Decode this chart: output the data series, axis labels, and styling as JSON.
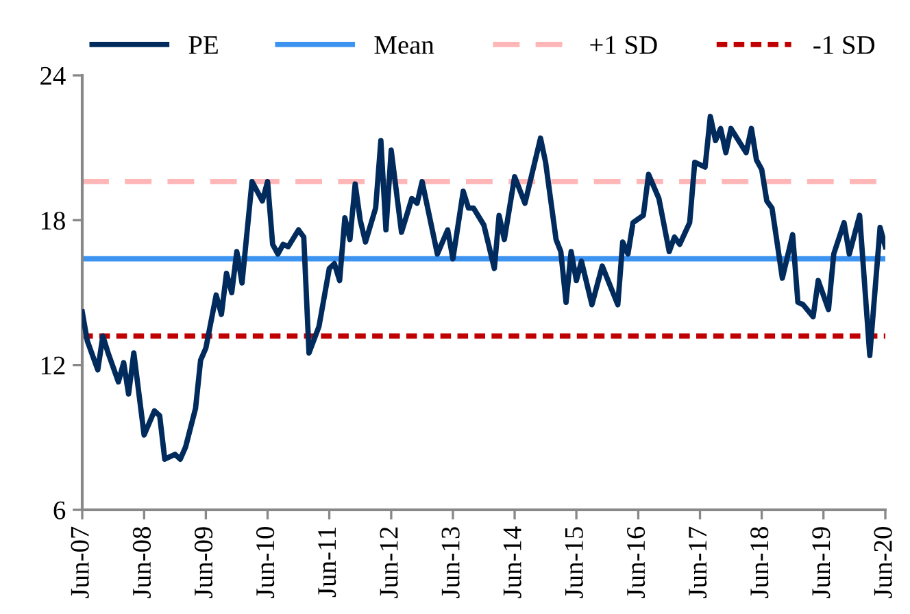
{
  "chart_data": {
    "type": "line",
    "series": [
      {
        "name": "PE",
        "color": "#002b5c",
        "x": [
          "2007-06",
          "2007-07",
          "2007-09",
          "2007-10",
          "2007-11",
          "2008-01",
          "2008-02",
          "2008-03",
          "2008-04",
          "2008-06",
          "2008-08",
          "2008-09",
          "2008-10",
          "2008-12",
          "2009-01",
          "2009-02",
          "2009-04",
          "2009-05",
          "2009-06",
          "2009-08",
          "2009-09",
          "2009-10",
          "2009-11",
          "2009-12",
          "2010-01",
          "2010-03",
          "2010-05",
          "2010-06",
          "2010-07",
          "2010-08",
          "2010-09",
          "2010-10",
          "2010-12",
          "2011-01",
          "2011-02",
          "2011-04",
          "2011-06",
          "2011-07",
          "2011-08",
          "2011-09",
          "2011-10",
          "2011-11",
          "2011-12",
          "2012-01",
          "2012-03",
          "2012-04",
          "2012-05",
          "2012-06",
          "2012-08",
          "2012-10",
          "2012-11",
          "2012-12",
          "2013-03",
          "2013-05",
          "2013-06",
          "2013-08",
          "2013-09",
          "2013-10",
          "2013-12",
          "2014-02",
          "2014-03",
          "2014-04",
          "2014-06",
          "2014-08",
          "2014-11",
          "2014-12",
          "2015-02",
          "2015-03",
          "2015-04",
          "2015-05",
          "2015-06",
          "2015-07",
          "2015-09",
          "2015-11",
          "2016-02",
          "2016-03",
          "2016-04",
          "2016-05",
          "2016-07",
          "2016-08",
          "2016-10",
          "2016-12",
          "2017-01",
          "2017-02",
          "2017-04",
          "2017-05",
          "2017-07",
          "2017-08",
          "2017-09",
          "2017-10",
          "2017-11",
          "2017-12",
          "2018-03",
          "2018-04",
          "2018-05",
          "2018-06",
          "2018-07",
          "2018-08",
          "2018-10",
          "2018-12",
          "2019-01",
          "2019-02",
          "2019-04",
          "2019-05",
          "2019-07",
          "2019-08",
          "2019-10",
          "2019-11",
          "2020-01",
          "2020-03",
          "2020-05",
          "2020-06"
        ],
        "values": [
          14.2,
          13.0,
          11.8,
          13.2,
          12.5,
          11.3,
          12.1,
          10.8,
          12.5,
          9.1,
          10.1,
          9.9,
          8.1,
          8.3,
          8.1,
          8.6,
          10.2,
          12.2,
          12.7,
          14.9,
          14.1,
          15.8,
          15.0,
          16.7,
          15.4,
          19.6,
          18.8,
          19.6,
          17.0,
          16.6,
          17.0,
          16.9,
          17.6,
          17.3,
          12.5,
          13.6,
          16.0,
          16.2,
          15.5,
          18.1,
          17.2,
          19.5,
          18.0,
          17.1,
          18.5,
          21.3,
          17.6,
          20.9,
          17.5,
          18.9,
          18.7,
          19.6,
          16.6,
          17.6,
          16.4,
          19.2,
          18.5,
          18.5,
          17.8,
          16.0,
          18.2,
          17.2,
          19.8,
          18.7,
          21.4,
          20.4,
          17.2,
          16.7,
          14.6,
          16.7,
          15.5,
          16.3,
          14.5,
          16.1,
          14.5,
          17.1,
          16.6,
          17.9,
          18.2,
          19.9,
          18.9,
          16.7,
          17.3,
          17.0,
          17.9,
          20.4,
          20.2,
          22.3,
          21.3,
          21.8,
          20.8,
          21.8,
          20.8,
          21.8,
          20.5,
          20.1,
          18.8,
          18.5,
          15.6,
          17.4,
          14.6,
          14.5,
          14.0,
          15.5,
          14.3,
          16.6,
          17.9,
          16.6,
          18.2,
          12.4,
          17.7,
          16.9
        ]
      }
    ],
    "ref_lines": [
      {
        "axis": "y",
        "value": 16.4,
        "label": "Mean",
        "color": "#3c93f0",
        "line_style": "solid"
      },
      {
        "axis": "y",
        "value": 19.6,
        "label": "+1 SD",
        "color": "#ffb6b6",
        "line_style": "dashed"
      },
      {
        "axis": "y",
        "value": 13.2,
        "label": "-1 SD",
        "color": "#c00000",
        "line_style": "dotted"
      }
    ],
    "xlim": [
      "2007-06",
      "2020-06"
    ],
    "xticks": [
      {
        "value": "2007-06",
        "label": "Jun-07"
      },
      {
        "value": "2008-06",
        "label": "Jun-08"
      },
      {
        "value": "2009-06",
        "label": "Jun-09"
      },
      {
        "value": "2010-06",
        "label": "Jun-10"
      },
      {
        "value": "2011-06",
        "label": "Jun-11"
      },
      {
        "value": "2012-06",
        "label": "Jun-12"
      },
      {
        "value": "2013-06",
        "label": "Jun-13"
      },
      {
        "value": "2014-06",
        "label": "Jun-14"
      },
      {
        "value": "2015-06",
        "label": "Jun-15"
      },
      {
        "value": "2016-06",
        "label": "Jun-16"
      },
      {
        "value": "2017-06",
        "label": "Jun-17"
      },
      {
        "value": "2018-06",
        "label": "Jun-18"
      },
      {
        "value": "2019-06",
        "label": "Jun-19"
      },
      {
        "value": "2020-06",
        "label": "Jun-20"
      }
    ],
    "ylim": [
      6,
      24
    ],
    "yticks": [
      6,
      12,
      18,
      24
    ],
    "grid": false,
    "legend": "top",
    "marker": "none",
    "line_style": "solid"
  }
}
